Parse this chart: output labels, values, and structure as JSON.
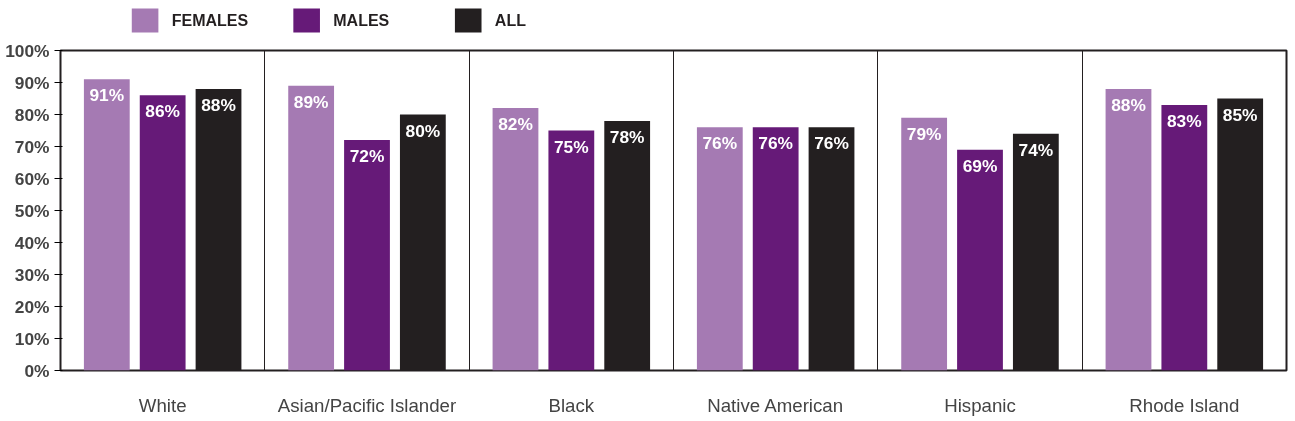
{
  "chart_data": {
    "type": "bar",
    "categories": [
      "White",
      "Asian/Pacific Islander",
      "Black",
      "Native American",
      "Hispanic",
      "Rhode Island"
    ],
    "series": [
      {
        "name": "FEMALES",
        "color": "#a57ab3",
        "values": [
          91,
          89,
          82,
          76,
          79,
          88
        ],
        "value_labels": [
          "91%",
          "89%",
          "82%",
          "76%",
          "79%",
          "88%"
        ]
      },
      {
        "name": "MALES",
        "color": "#661a78",
        "values": [
          86,
          72,
          75,
          76,
          69,
          83
        ],
        "value_labels": [
          "86%",
          "72%",
          "75%",
          "76%",
          "69%",
          "83%"
        ]
      },
      {
        "name": "ALL",
        "color": "#231f20",
        "values": [
          88,
          80,
          78,
          76,
          74,
          85
        ],
        "value_labels": [
          "88%",
          "80%",
          "78%",
          "76%",
          "74%",
          "85%"
        ]
      }
    ],
    "ylim": [
      0,
      100
    ],
    "yticks": [
      {
        "value": 0,
        "label": "0%"
      },
      {
        "value": 10,
        "label": "10%"
      },
      {
        "value": 20,
        "label": "20%"
      },
      {
        "value": 30,
        "label": "30%"
      },
      {
        "value": 40,
        "label": "40%"
      },
      {
        "value": 50,
        "label": "50%"
      },
      {
        "value": 60,
        "label": "60%"
      },
      {
        "value": 70,
        "label": "70%"
      },
      {
        "value": 80,
        "label": "80%"
      },
      {
        "value": 90,
        "label": "90%"
      },
      {
        "value": 100,
        "label": "100%"
      }
    ],
    "grid": "x",
    "legend": "top left"
  }
}
